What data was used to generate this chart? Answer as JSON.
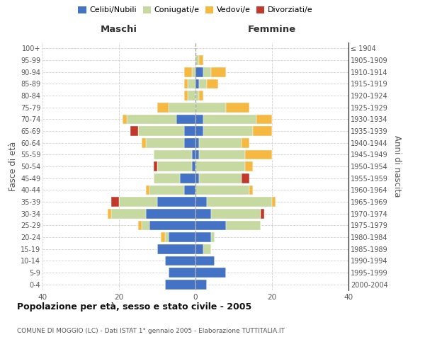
{
  "age_groups": [
    "0-4",
    "5-9",
    "10-14",
    "15-19",
    "20-24",
    "25-29",
    "30-34",
    "35-39",
    "40-44",
    "45-49",
    "50-54",
    "55-59",
    "60-64",
    "65-69",
    "70-74",
    "75-79",
    "80-84",
    "85-89",
    "90-94",
    "95-99",
    "100+"
  ],
  "birth_years": [
    "2000-2004",
    "1995-1999",
    "1990-1994",
    "1985-1989",
    "1980-1984",
    "1975-1979",
    "1970-1974",
    "1965-1969",
    "1960-1964",
    "1955-1959",
    "1950-1954",
    "1945-1949",
    "1940-1944",
    "1935-1939",
    "1930-1934",
    "1925-1929",
    "1920-1924",
    "1915-1919",
    "1910-1914",
    "1905-1909",
    "≤ 1904"
  ],
  "male_celibe": [
    8,
    7,
    8,
    10,
    7,
    12,
    13,
    10,
    3,
    4,
    1,
    1,
    3,
    3,
    5,
    0,
    0,
    0,
    0,
    0,
    0
  ],
  "male_coniugato": [
    0,
    0,
    0,
    0,
    1,
    2,
    9,
    10,
    9,
    7,
    9,
    10,
    10,
    12,
    13,
    7,
    2,
    2,
    1,
    0,
    0
  ],
  "male_vedovo": [
    0,
    0,
    0,
    0,
    1,
    1,
    1,
    0,
    1,
    0,
    0,
    0,
    1,
    0,
    1,
    3,
    1,
    1,
    2,
    0,
    0
  ],
  "male_divorziato": [
    0,
    0,
    0,
    0,
    0,
    0,
    0,
    2,
    0,
    0,
    1,
    0,
    0,
    2,
    0,
    0,
    0,
    0,
    0,
    0,
    0
  ],
  "female_celibe": [
    3,
    8,
    5,
    2,
    4,
    8,
    4,
    3,
    0,
    1,
    0,
    1,
    1,
    2,
    2,
    0,
    0,
    1,
    2,
    0,
    0
  ],
  "female_coniugato": [
    0,
    0,
    0,
    2,
    1,
    9,
    13,
    17,
    14,
    11,
    13,
    12,
    11,
    13,
    14,
    8,
    1,
    2,
    2,
    1,
    0
  ],
  "female_vedovo": [
    0,
    0,
    0,
    0,
    0,
    0,
    0,
    1,
    1,
    0,
    2,
    7,
    2,
    5,
    4,
    6,
    1,
    3,
    4,
    1,
    0
  ],
  "female_divorziato": [
    0,
    0,
    0,
    0,
    0,
    0,
    1,
    0,
    0,
    2,
    0,
    0,
    0,
    0,
    0,
    0,
    0,
    0,
    0,
    0,
    0
  ],
  "color_celibe": "#4472c4",
  "color_coniugato": "#c5d9a0",
  "color_vedovo": "#f5b942",
  "color_divorziato": "#c0392b",
  "title": "Popolazione per età, sesso e stato civile - 2005",
  "subtitle": "COMUNE DI MOGGIO (LC) - Dati ISTAT 1° gennaio 2005 - Elaborazione TUTTITALIA.IT",
  "xlabel_left": "Maschi",
  "xlabel_right": "Femmine",
  "ylabel_left": "Fasce di età",
  "ylabel_right": "Anni di nascita",
  "xlim": 40,
  "background_color": "#ffffff",
  "grid_color": "#cccccc"
}
